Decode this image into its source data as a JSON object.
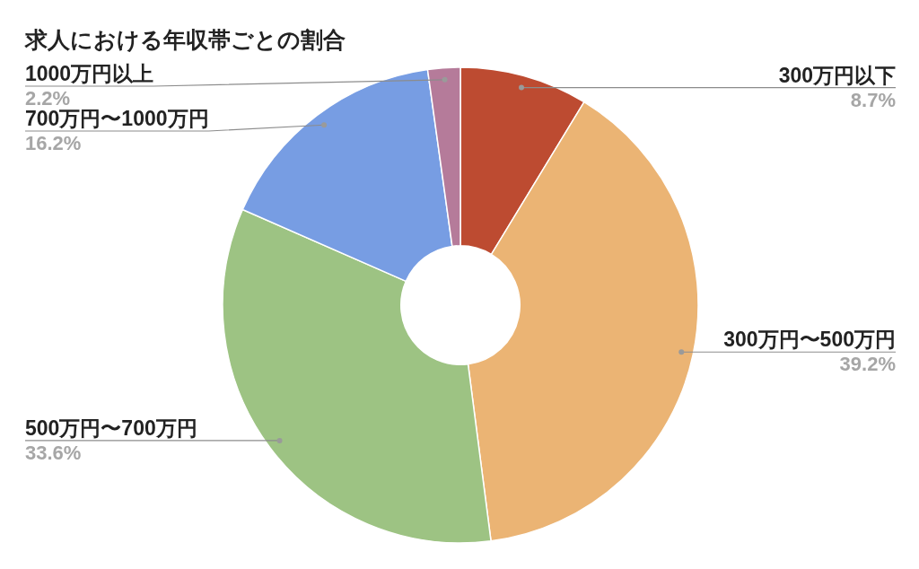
{
  "chart_data": {
    "type": "donut",
    "title": "求人における年収帯ごとの割合",
    "categories": [
      "300万円以下",
      "300万円〜500万円",
      "500万円〜700万円",
      "700万円〜1000万円",
      "1000万円以上"
    ],
    "values": [
      8.7,
      39.2,
      33.6,
      16.2,
      2.2
    ],
    "value_labels": [
      "8.7%",
      "39.2%",
      "33.6%",
      "16.2%",
      "2.2%"
    ],
    "colors": [
      "#bd4b31",
      "#ebb474",
      "#9dc383",
      "#779de3",
      "#b57b9a"
    ]
  }
}
